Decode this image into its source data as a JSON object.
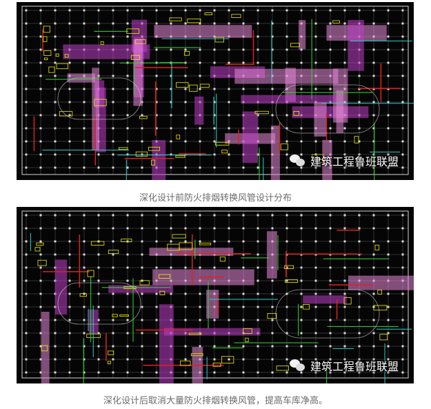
{
  "figures": [
    {
      "caption": "深化设计前防火排烟转换风管设计分布",
      "watermark": "建筑工程鲁班联盟"
    },
    {
      "caption": "深化设计后取消大量防火排烟转换风管，提高车库净高。",
      "watermark": "建筑工程鲁班联盟"
    }
  ],
  "colors": {
    "background": "#050505",
    "grid": "#d8d8d8",
    "duct_magenta": "#c040c8",
    "duct_pink": "#e888d8",
    "wall_red": "#e02020",
    "annotation_yellow": "#f0f000",
    "pipe_green": "#30e030",
    "pipe_cyan": "#30d0d0",
    "caption_text": "#6b6b6b"
  }
}
